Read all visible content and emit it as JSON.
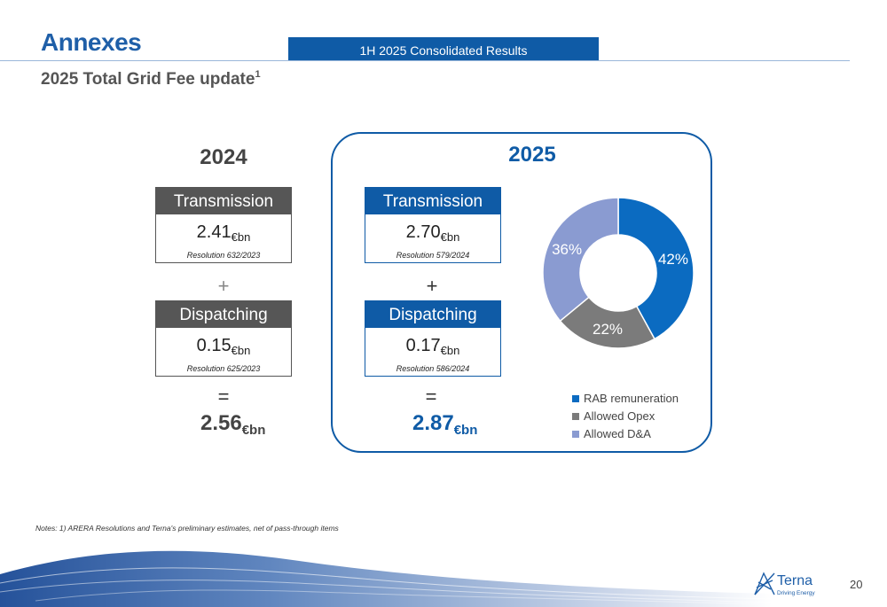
{
  "header": {
    "title": "Annexes",
    "banner": "1H 2025 Consolidated Results",
    "subtitle": "2025 Total Grid Fee update",
    "subtitle_sup": "1"
  },
  "y2024": {
    "year": "2024",
    "transmission": {
      "label": "Transmission",
      "value": "2.41",
      "unit": "€bn",
      "resolution": "Resolution 632/2023"
    },
    "plus": "+",
    "dispatching": {
      "label": "Dispatching",
      "value": "0.15",
      "unit": "€bn",
      "resolution": "Resolution 625/2023"
    },
    "equals": "=",
    "total": {
      "value": "2.56",
      "unit": "€bn"
    }
  },
  "y2025": {
    "year": "2025",
    "transmission": {
      "label": "Transmission",
      "value": "2.70",
      "unit": "€bn",
      "resolution": "Resolution 579/2024"
    },
    "plus": "+",
    "dispatching": {
      "label": "Dispatching",
      "value": "0.17",
      "unit": "€bn",
      "resolution": "Resolution 586/2024"
    },
    "equals": "=",
    "total": {
      "value": "2.87",
      "unit": "€bn"
    }
  },
  "chart_data": {
    "type": "pie",
    "donut": true,
    "categories": [
      "RAB remuneration",
      "Allowed Opex",
      "Allowed D&A"
    ],
    "values": [
      42,
      22,
      36
    ],
    "labels": [
      "42%",
      "22%",
      "36%"
    ],
    "colors": [
      "#0b6bc1",
      "#7b7b7b",
      "#8a9bd1"
    ],
    "legend_position": "bottom"
  },
  "footer": {
    "notes": "Notes: 1) ARERA Resolutions and Terna's preliminary estimates, net of pass-through items",
    "page_number": "20",
    "logo_name": "Terna",
    "logo_tagline": "Driving Energy"
  }
}
